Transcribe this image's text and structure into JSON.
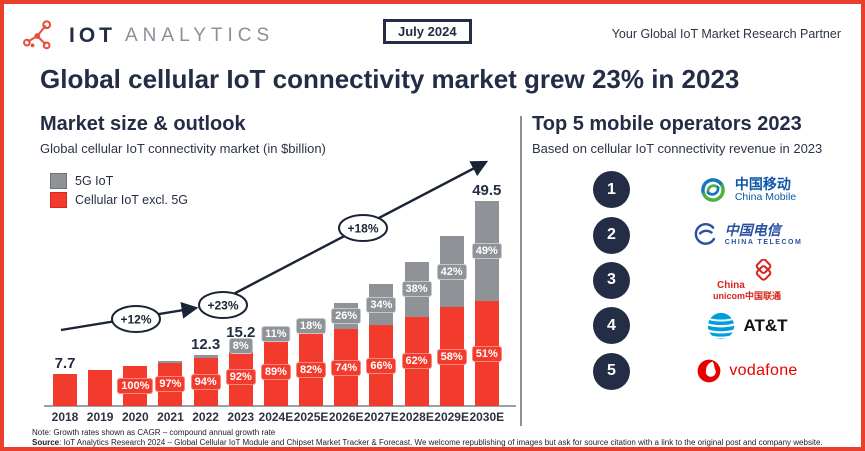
{
  "header": {
    "brand_primary": "IOT",
    "brand_secondary": "ANALYTICS",
    "date_badge": "July 2024",
    "tagline": "Your Global IoT Market Research Partner"
  },
  "title": "Global cellular IoT connectivity market grew 23% in 2023",
  "market_section": {
    "heading": "Market size & outlook",
    "subtitle": "Global cellular IoT connectivity market (in $billion)",
    "legend": [
      {
        "label": "5G IoT",
        "color": "#8f9296"
      },
      {
        "label": "Cellular IoT excl. 5G",
        "color": "#f33b2d"
      }
    ]
  },
  "chart_data": {
    "type": "bar",
    "stacked": true,
    "title": "Market size & outlook",
    "subtitle": "Global cellular IoT connectivity market (in $billion)",
    "ylabel": "$billion",
    "ylim": [
      0,
      50
    ],
    "grid": false,
    "categories": [
      "2018",
      "2019",
      "2020",
      "2021",
      "2022",
      "2023",
      "2024E",
      "2025E",
      "2026E",
      "2027E",
      "2028E",
      "2029E",
      "2030E"
    ],
    "totals": [
      7.7,
      8.6,
      9.7,
      10.8,
      12.3,
      15.2,
      18.3,
      21.2,
      25.0,
      29.5,
      34.8,
      41.1,
      49.5
    ],
    "total_labels": [
      {
        "index": 0,
        "text": "7.7"
      },
      {
        "index": 4,
        "text": "12.3"
      },
      {
        "index": 5,
        "text": "15.2"
      },
      {
        "index": 12,
        "text": "49.5"
      }
    ],
    "series": [
      {
        "name": "Cellular IoT excl. 5G",
        "color": "#f33b2d",
        "share_pct": [
          100,
          100,
          100,
          97,
          94,
          92,
          89,
          82,
          74,
          66,
          62,
          58,
          51
        ],
        "labels": [
          "",
          "",
          "100%",
          "97%",
          "94%",
          "92%",
          "89%",
          "82%",
          "74%",
          "66%",
          "62%",
          "58%",
          "51%"
        ]
      },
      {
        "name": "5G IoT",
        "color": "#8f9296",
        "share_pct": [
          0,
          0,
          0,
          3,
          6,
          8,
          11,
          18,
          26,
          34,
          38,
          42,
          49
        ],
        "labels": [
          "",
          "",
          "",
          "",
          "",
          "8%",
          "11%",
          "18%",
          "26%",
          "34%",
          "38%",
          "42%",
          "49%"
        ]
      }
    ],
    "growth_annotations": [
      {
        "label": "+12%"
      },
      {
        "label": "+23%"
      },
      {
        "label": "+18%"
      }
    ]
  },
  "operators_section": {
    "heading": "Top 5 mobile operators 2023",
    "subtitle": "Based on cellular IoT connectivity revenue in 2023",
    "operators": [
      {
        "rank": "1",
        "name": "China Mobile",
        "text_cn": "中国移动",
        "text_en": "China Mobile"
      },
      {
        "rank": "2",
        "name": "China Telecom",
        "text_cn": "中国电信",
        "text_en": "CHINA TELECOM"
      },
      {
        "rank": "3",
        "name": "China Unicom",
        "text_line1": "China",
        "text_line2": "unicom中国联通"
      },
      {
        "rank": "4",
        "name": "AT&T",
        "wordmark": "AT&T"
      },
      {
        "rank": "5",
        "name": "Vodafone",
        "wordmark": "vodafone"
      }
    ]
  },
  "footer": {
    "note": "Note: Growth rates shown as CAGR – compound annual growth rate",
    "source_label": "Source",
    "source_text": ": IoT Analytics Research 2024 – Global Cellular IoT Module and Chipset Market Tracker & Forecast. We welcome republishing of images but ask for source citation with a link to the original post and company website."
  }
}
